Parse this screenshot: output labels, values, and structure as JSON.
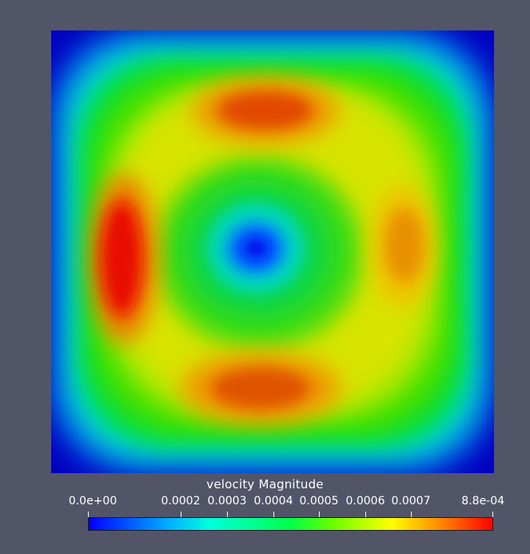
{
  "legend": {
    "title": "velocity Magnitude",
    "min_label": "0.0e+00",
    "max_label": "8.8e-04",
    "ticks": [
      "0.0002",
      "0.0003",
      "0.0004",
      "0.0005",
      "0.0006",
      "0.0007"
    ]
  },
  "colors": {
    "background": "#525568",
    "colormap": [
      "#0000ff",
      "#00b0ff",
      "#00ffdc",
      "#00ff46",
      "#66ff00",
      "#ffff00",
      "#ff8a00",
      "#ff0000"
    ]
  }
}
